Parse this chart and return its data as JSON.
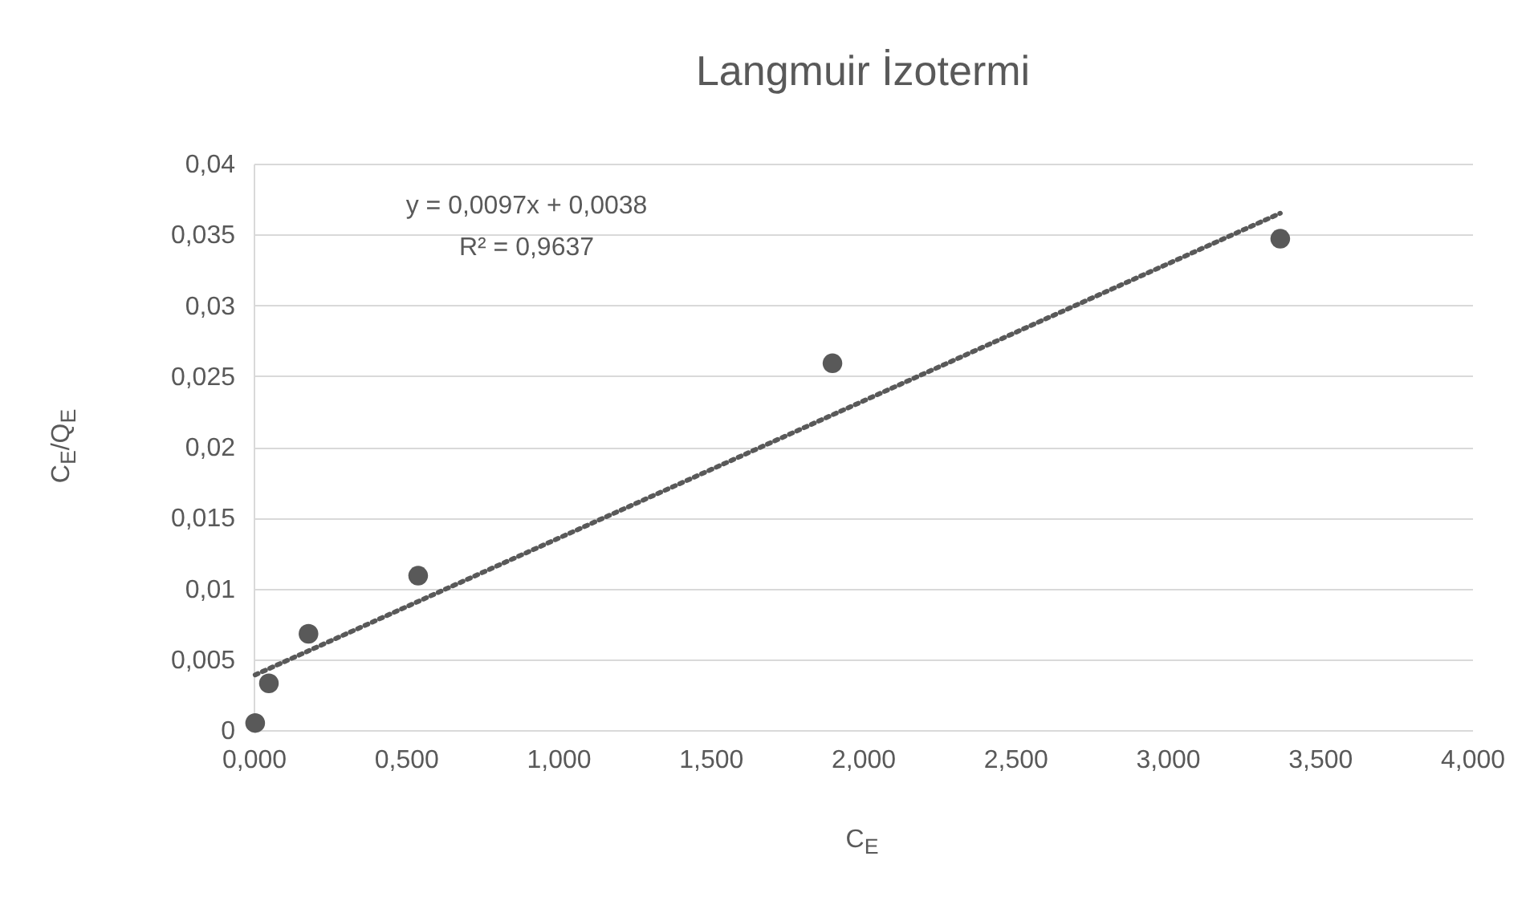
{
  "chart_data": {
    "type": "scatter",
    "title": "Langmuir İzotermi",
    "xlabel": "C$_{E}$",
    "ylabel": "C$_{E}$/Q$_{E}$",
    "annotations": [
      "y = 0,0097x + 0,0038",
      "R² = 0,9637"
    ],
    "xlim": [
      0,
      4
    ],
    "ylim": [
      0,
      0.04
    ],
    "xticks": [
      {
        "value": 0,
        "label": "0,000"
      },
      {
        "value": 0.5,
        "label": "0,500"
      },
      {
        "value": 1,
        "label": "1,000"
      },
      {
        "value": 1.5,
        "label": "1,500"
      },
      {
        "value": 2,
        "label": "2,000"
      },
      {
        "value": 2.5,
        "label": "2,500"
      },
      {
        "value": 3,
        "label": "3,000"
      },
      {
        "value": 3.5,
        "label": "3,500"
      },
      {
        "value": 4,
        "label": "4,000"
      }
    ],
    "yticks": [
      {
        "value": 0,
        "label": "0"
      },
      {
        "value": 0.005,
        "label": "0,005"
      },
      {
        "value": 0.01,
        "label": "0,01"
      },
      {
        "value": 0.015,
        "label": "0,015"
      },
      {
        "value": 0.02,
        "label": "0,02"
      },
      {
        "value": 0.025,
        "label": "0,025"
      },
      {
        "value": 0.03,
        "label": "0,03"
      },
      {
        "value": 0.035,
        "label": "0,035"
      },
      {
        "value": 0.04,
        "label": "0,04"
      }
    ],
    "grid": "y",
    "marker": "circle",
    "series": [
      {
        "color": "#595959",
        "x": [
          0.005,
          0.05,
          0.18,
          0.54,
          1.9,
          3.37
        ],
        "values": [
          0.0005,
          0.0033,
          0.0068,
          0.0109,
          0.0259,
          0.0347
        ]
      },
      {
        "type": "line",
        "color": "#595959",
        "line_style": "dotted",
        "marker": "none",
        "x": [
          0.005,
          3.37
        ],
        "values": [
          0.0039,
          0.0365
        ]
      }
    ]
  }
}
